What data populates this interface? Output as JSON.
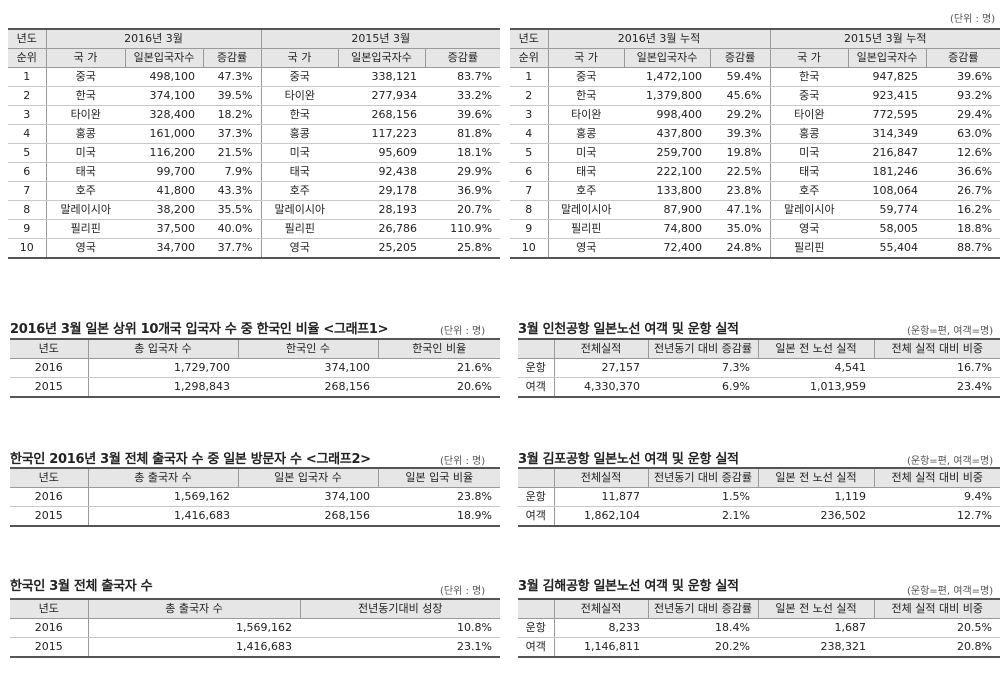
{
  "unit_main": "(단위 : 명)",
  "left_table": {
    "col_year": "년도",
    "col_rank": "순위",
    "group_2016": "2016년 3월",
    "group_2015": "2015년 3월",
    "col_country": "국 가",
    "col_visitors": "일본입국자수",
    "col_growth": "증감률",
    "rows": [
      {
        "rank": "1",
        "c16": "중국",
        "v16": "498,100",
        "g16": "47.3%",
        "c15": "중국",
        "v15": "338,121",
        "g15": "83.7%"
      },
      {
        "rank": "2",
        "c16": "한국",
        "v16": "374,100",
        "g16": "39.5%",
        "c15": "타이완",
        "v15": "277,934",
        "g15": "33.2%"
      },
      {
        "rank": "3",
        "c16": "타이완",
        "v16": "328,400",
        "g16": "18.2%",
        "c15": "한국",
        "v15": "268,156",
        "g15": "39.6%"
      },
      {
        "rank": "4",
        "c16": "홍콩",
        "v16": "161,000",
        "g16": "37.3%",
        "c15": "홍콩",
        "v15": "117,223",
        "g15": "81.8%"
      },
      {
        "rank": "5",
        "c16": "미국",
        "v16": "116,200",
        "g16": "21.5%",
        "c15": "미국",
        "v15": "95,609",
        "g15": "18.1%"
      },
      {
        "rank": "6",
        "c16": "태국",
        "v16": "99,700",
        "g16": "7.9%",
        "c15": "태국",
        "v15": "92,438",
        "g15": "29.9%"
      },
      {
        "rank": "7",
        "c16": "호주",
        "v16": "41,800",
        "g16": "43.3%",
        "c15": "호주",
        "v15": "29,178",
        "g15": "36.9%"
      },
      {
        "rank": "8",
        "c16": "말레이시아",
        "v16": "38,200",
        "g16": "35.5%",
        "c15": "말레이시아",
        "v15": "28,193",
        "g15": "20.7%"
      },
      {
        "rank": "9",
        "c16": "필리핀",
        "v16": "37,500",
        "g16": "40.0%",
        "c15": "필리핀",
        "v15": "26,786",
        "g15": "110.9%"
      },
      {
        "rank": "10",
        "c16": "영국",
        "v16": "34,700",
        "g16": "37.7%",
        "c15": "영국",
        "v15": "25,205",
        "g15": "25.8%"
      }
    ]
  },
  "right_table": {
    "col_year": "년도",
    "col_rank": "순위",
    "group_2016": "2016년 3월 누적",
    "group_2015": "2015년 3월 누적",
    "col_country": "국 가",
    "col_visitors": "일본입국자수",
    "col_growth": "증감률",
    "rows": [
      {
        "rank": "1",
        "c16": "중국",
        "v16": "1,472,100",
        "g16": "59.4%",
        "c15": "한국",
        "v15": "947,825",
        "g15": "39.6%"
      },
      {
        "rank": "2",
        "c16": "한국",
        "v16": "1,379,800",
        "g16": "45.6%",
        "c15": "중국",
        "v15": "923,415",
        "g15": "93.2%"
      },
      {
        "rank": "3",
        "c16": "타이완",
        "v16": "998,400",
        "g16": "29.2%",
        "c15": "타이완",
        "v15": "772,595",
        "g15": "29.4%"
      },
      {
        "rank": "4",
        "c16": "홍콩",
        "v16": "437,800",
        "g16": "39.3%",
        "c15": "홍콩",
        "v15": "314,349",
        "g15": "63.0%"
      },
      {
        "rank": "5",
        "c16": "미국",
        "v16": "259,700",
        "g16": "19.8%",
        "c15": "미국",
        "v15": "216,847",
        "g15": "12.6%"
      },
      {
        "rank": "6",
        "c16": "태국",
        "v16": "222,100",
        "g16": "22.5%",
        "c15": "태국",
        "v15": "181,246",
        "g15": "36.6%"
      },
      {
        "rank": "7",
        "c16": "호주",
        "v16": "133,800",
        "g16": "23.8%",
        "c15": "호주",
        "v15": "108,064",
        "g15": "26.7%"
      },
      {
        "rank": "8",
        "c16": "말레이시아",
        "v16": "87,900",
        "g16": "47.1%",
        "c15": "말레이시아",
        "v15": "59,774",
        "g15": "16.2%"
      },
      {
        "rank": "9",
        "c16": "필리핀",
        "v16": "74,800",
        "g16": "35.0%",
        "c15": "영국",
        "v15": "58,005",
        "g15": "18.8%"
      },
      {
        "rank": "10",
        "c16": "영국",
        "v16": "72,400",
        "g16": "24.8%",
        "c15": "필리핀",
        "v15": "55,404",
        "g15": "88.7%"
      }
    ]
  },
  "korean_ratio": {
    "title": "2016년 3월 일본 상위 10개국 입국자 수 중 한국인 비율 <그래프1>",
    "unit": "(단위 : 명)",
    "headers": [
      "년도",
      "총 입국자 수",
      "한국인 수",
      "한국인 비율"
    ],
    "rows": [
      [
        "2016",
        "1,729,700",
        "374,100",
        "21.6%"
      ],
      [
        "2015",
        "1,298,843",
        "268,156",
        "20.6%"
      ]
    ]
  },
  "japan_visit": {
    "title": "한국인 2016년 3월 전체 출국자 수 중 일본 방문자 수 <그래프2>",
    "unit": "(단위 : 명)",
    "headers": [
      "년도",
      "총 출국자 수",
      "일본 입국자 수",
      "일본 입국 비율"
    ],
    "rows": [
      [
        "2016",
        "1,569,162",
        "374,100",
        "23.8%"
      ],
      [
        "2015",
        "1,416,683",
        "268,156",
        "18.9%"
      ]
    ]
  },
  "total_departures": {
    "title": "한국인 3월 전체 출국자 수",
    "unit": "(단위 : 명)",
    "headers": [
      "년도",
      "총 출국자 수",
      "전년동기대비 성장"
    ],
    "rows": [
      [
        "2016",
        "1,569,162",
        "10.8%"
      ],
      [
        "2015",
        "1,416,683",
        "23.1%"
      ]
    ]
  },
  "incheon": {
    "title": "3월 인천공항 일본노선 여객 및 운항 실적",
    "unit": "(운항=편, 여객=명)",
    "headers": [
      "",
      "전체실적",
      "전년동기 대비 증감률",
      "일본 전 노선 실적",
      "전체 실적 대비 비중"
    ],
    "rows": [
      [
        "운항",
        "27,157",
        "7.3%",
        "4,541",
        "16.7%"
      ],
      [
        "여객",
        "4,330,370",
        "6.9%",
        "1,013,959",
        "23.4%"
      ]
    ]
  },
  "gimpo": {
    "title": "3월 김포공항 일본노선 여객 및 운항 실적",
    "unit": "(운항=편, 여객=명)",
    "headers": [
      "",
      "전체실적",
      "전년동기 대비 증감률",
      "일본 전 노선 실적",
      "전체 실적 대비 비중"
    ],
    "rows": [
      [
        "운항",
        "11,877",
        "1.5%",
        "1,119",
        "9.4%"
      ],
      [
        "여객",
        "1,862,104",
        "2.1%",
        "236,502",
        "12.7%"
      ]
    ]
  },
  "gimhae": {
    "title": "3월 김해공항 일본노선 여객 및 운항 실적",
    "unit": "(운항=편, 여객=명)",
    "headers": [
      "",
      "전체실적",
      "전년동기 대비 증감률",
      "일본 전 노선 실적",
      "전체 실적 대비 비중"
    ],
    "rows": [
      [
        "운항",
        "8,233",
        "18.4%",
        "1,687",
        "20.5%"
      ],
      [
        "여객",
        "1,146,811",
        "20.2%",
        "238,321",
        "20.8%"
      ]
    ]
  }
}
